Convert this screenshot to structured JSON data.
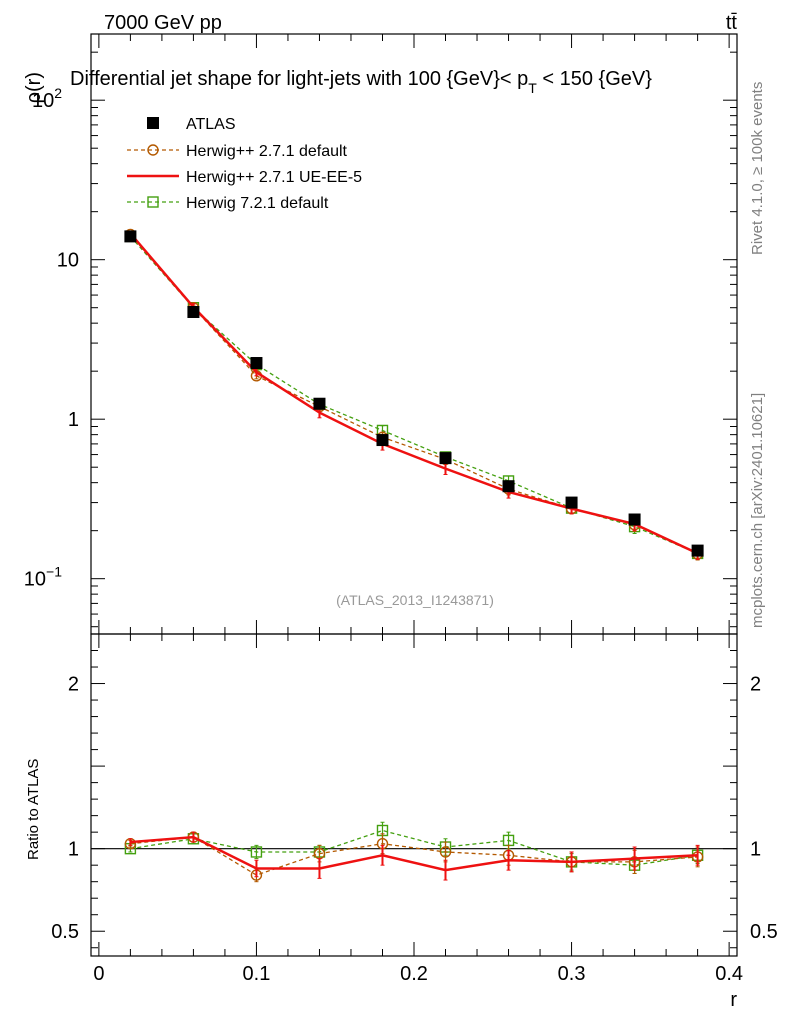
{
  "header": {
    "energy_label": "7000 GeV pp",
    "process_label": "tt̄",
    "title": "Differential jet shape for light-jets with 100 {GeV}< p",
    "title_sub": "T",
    "title_tail": " < 150 {GeV}",
    "side_label_top": "Rivet 4.1.0, ≥ 100k events",
    "side_label_bottom": "mcplots.cern.ch [arXiv:2401.10621]",
    "analysis_id": "(ATLAS_2013_I1243871)"
  },
  "colors": {
    "atlas": "#000000",
    "herwigpp_default": "#b35900",
    "herwigpp_ueee5": "#ee1111",
    "herwig7_default": "#44a010",
    "analysis_id": "#999999"
  },
  "legend": [
    {
      "name": "ATLAS",
      "label": "ATLAS"
    },
    {
      "name": "herwigpp-default",
      "label": "Herwig++ 2.7.1 default"
    },
    {
      "name": "herwigpp-ueee5",
      "label": "Herwig++ 2.7.1 UE-EE-5"
    },
    {
      "name": "herwig7-default",
      "label": "Herwig 7.2.1 default"
    }
  ],
  "chart_data": [
    {
      "type": "line",
      "panel": "main",
      "ylabel": "ρ(r)",
      "yscale": "log",
      "ylim": [
        0.045,
        260
      ],
      "xlim": [
        -0.005,
        0.405
      ],
      "y_ticks": [
        {
          "value": 0.1,
          "label": "10",
          "sup": "−1"
        },
        {
          "value": 1,
          "label": "1",
          "sup": ""
        },
        {
          "value": 10,
          "label": "10",
          "sup": ""
        },
        {
          "value": 100,
          "label": "10",
          "sup": "2"
        }
      ],
      "x": [
        0.02,
        0.06,
        0.1,
        0.14,
        0.18,
        0.22,
        0.26,
        0.3,
        0.34,
        0.38
      ],
      "series": [
        {
          "name": "ATLAS",
          "values": [
            14.0,
            4.7,
            2.25,
            1.25,
            0.74,
            0.57,
            0.38,
            0.3,
            0.235,
            0.15
          ]
        },
        {
          "name": "Herwig++ 2.7.1 default",
          "values": [
            14.4,
            5.0,
            1.87,
            1.2,
            0.77,
            0.56,
            0.365,
            0.275,
            0.218,
            0.143
          ],
          "errors": [
            0.5,
            0.2,
            0.08,
            0.07,
            0.06,
            0.04,
            0.03,
            0.02,
            0.02,
            0.012
          ]
        },
        {
          "name": "Herwig++ 2.7.1 UE-EE-5",
          "values": [
            14.6,
            5.05,
            1.97,
            1.1,
            0.7,
            0.49,
            0.35,
            0.275,
            0.22,
            0.144
          ],
          "errors": [
            0.5,
            0.25,
            0.1,
            0.08,
            0.06,
            0.04,
            0.03,
            0.02,
            0.02,
            0.012
          ]
        },
        {
          "name": "Herwig 7.2.1 default",
          "values": [
            14.0,
            5.0,
            2.2,
            1.24,
            0.85,
            0.58,
            0.41,
            0.277,
            0.212,
            0.144
          ],
          "errors": [
            0.5,
            0.2,
            0.08,
            0.07,
            0.06,
            0.04,
            0.03,
            0.02,
            0.02,
            0.012
          ]
        }
      ]
    },
    {
      "type": "line",
      "panel": "ratio",
      "ylabel": "Ratio to ATLAS",
      "xlabel": "r",
      "ylim": [
        0.35,
        2.3
      ],
      "xlim": [
        -0.005,
        0.405
      ],
      "y_ticks": [
        0.5,
        1,
        2
      ],
      "x_ticks": [
        0,
        0.1,
        0.2,
        0.3,
        0.4
      ],
      "reference": 1.0,
      "x": [
        0.02,
        0.06,
        0.1,
        0.14,
        0.18,
        0.22,
        0.26,
        0.3,
        0.34,
        0.38
      ],
      "series": [
        {
          "name": "Herwig++ 2.7.1 default",
          "values": [
            1.03,
            1.07,
            0.84,
            0.97,
            1.03,
            0.98,
            0.96,
            0.92,
            0.92,
            0.95
          ],
          "errors": [
            0.02,
            0.03,
            0.04,
            0.05,
            0.06,
            0.06,
            0.06,
            0.06,
            0.07,
            0.06
          ]
        },
        {
          "name": "Herwig++ 2.7.1 UE-EE-5",
          "values": [
            1.04,
            1.07,
            0.88,
            0.88,
            0.96,
            0.87,
            0.93,
            0.92,
            0.94,
            0.96
          ],
          "errors": [
            0.02,
            0.03,
            0.05,
            0.06,
            0.06,
            0.06,
            0.06,
            0.06,
            0.07,
            0.06
          ]
        },
        {
          "name": "Herwig 7.2.1 default",
          "values": [
            1.0,
            1.06,
            0.98,
            0.98,
            1.11,
            1.01,
            1.05,
            0.92,
            0.9,
            0.96
          ],
          "errors": [
            0.02,
            0.03,
            0.04,
            0.04,
            0.05,
            0.05,
            0.05,
            0.05,
            0.05,
            0.05
          ]
        }
      ]
    }
  ]
}
